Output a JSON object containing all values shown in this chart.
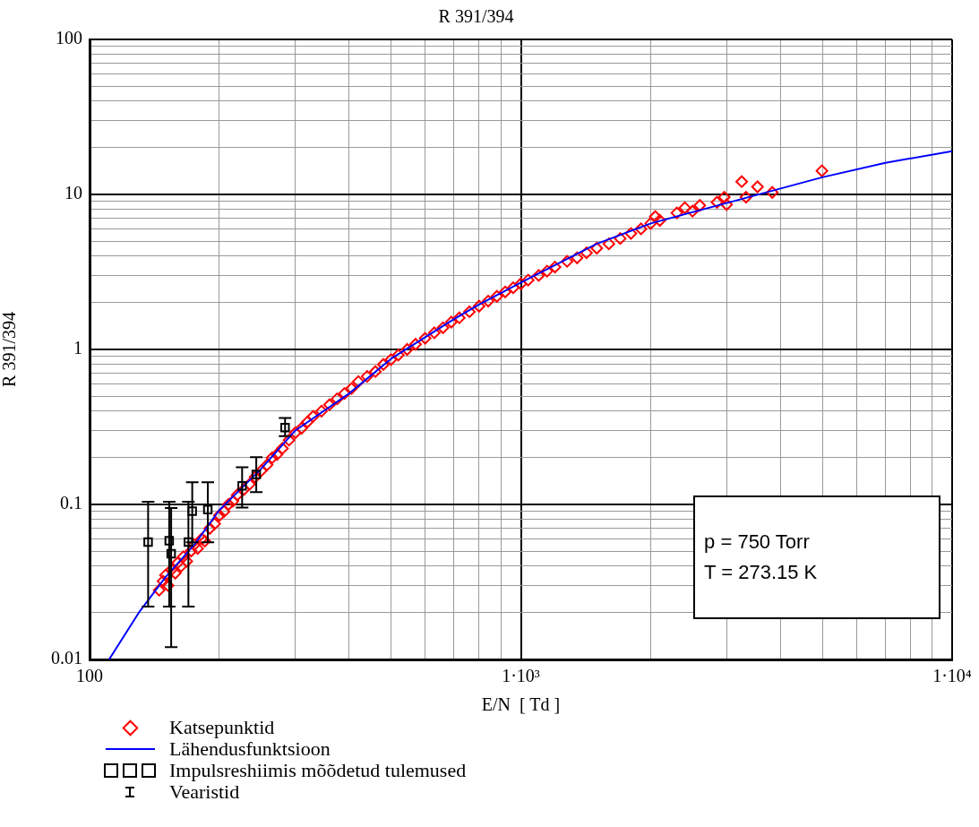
{
  "chart_data": {
    "type": "scatter",
    "title": "R 391/394",
    "xlabel": "E/N  [ Td ]",
    "ylabel": "R 391/394",
    "log": "xy",
    "grid": true,
    "legend": "bottom left",
    "xlim": [
      100,
      10000
    ],
    "xticks": [
      100,
      {
        "value": 1000,
        "label": "1·10³"
      },
      {
        "value": 10000,
        "label": "1·10⁴"
      }
    ],
    "ylim": [
      0.01,
      100
    ],
    "yticks": [
      0.01,
      0.1,
      1,
      10,
      100
    ],
    "annotations": [
      "p = 750 Torr",
      "T = 273.15 K",
      "Vearistid"
    ],
    "series": [
      {
        "name": "Katsepunktid",
        "type": "scatter",
        "marker": "diamond",
        "color": "#ff0000",
        "x": [
          145,
          148,
          150,
          152,
          155,
          158,
          160,
          163,
          165,
          168,
          172,
          175,
          178,
          182,
          185,
          190,
          195,
          200,
          205,
          210,
          215,
          220,
          228,
          235,
          242,
          250,
          258,
          265,
          272,
          280,
          290,
          300,
          310,
          320,
          330,
          345,
          360,
          375,
          390,
          405,
          420,
          440,
          460,
          480,
          500,
          520,
          545,
          570,
          600,
          630,
          660,
          690,
          720,
          760,
          800,
          840,
          880,
          920,
          960,
          1000,
          1040,
          1100,
          1150,
          1200,
          1280,
          1350,
          1420,
          1500,
          1600,
          1700,
          1800,
          1900,
          2000,
          2050,
          2100,
          2300,
          2400,
          2500,
          2600,
          2850,
          2963,
          3000,
          3252,
          3327,
          3538,
          3828,
          4990
        ],
        "values": [
          0.028,
          0.032,
          0.035,
          0.03,
          0.038,
          0.036,
          0.042,
          0.04,
          0.046,
          0.043,
          0.05,
          0.055,
          0.052,
          0.06,
          0.058,
          0.07,
          0.075,
          0.085,
          0.09,
          0.1,
          0.105,
          0.115,
          0.125,
          0.135,
          0.15,
          0.165,
          0.18,
          0.2,
          0.21,
          0.23,
          0.26,
          0.29,
          0.31,
          0.34,
          0.37,
          0.4,
          0.44,
          0.48,
          0.52,
          0.56,
          0.62,
          0.67,
          0.72,
          0.8,
          0.86,
          0.92,
          1.0,
          1.08,
          1.18,
          1.28,
          1.38,
          1.5,
          1.6,
          1.75,
          1.9,
          2.05,
          2.2,
          2.35,
          2.5,
          2.65,
          2.8,
          3.0,
          3.2,
          3.4,
          3.7,
          3.9,
          4.2,
          4.5,
          4.8,
          5.2,
          5.6,
          6.0,
          6.5,
          7.2,
          6.8,
          7.6,
          8.2,
          7.8,
          8.5,
          8.9,
          9.6,
          8.6,
          12.1,
          9.6,
          11.2,
          10.3,
          14.2
        ]
      },
      {
        "name": "Lähendusfunktsioon",
        "type": "line",
        "marker": "none",
        "color": "#0000ff",
        "x": [
          111,
          130,
          150,
          175,
          200,
          250,
          300,
          400,
          500,
          600,
          700,
          800,
          1000,
          1500,
          2000,
          3000,
          5000,
          7000,
          10000
        ],
        "values": [
          0.01,
          0.02,
          0.034,
          0.055,
          0.092,
          0.17,
          0.3,
          0.52,
          0.87,
          1.2,
          1.57,
          1.95,
          2.7,
          4.8,
          6.5,
          8.8,
          12.9,
          16,
          19
        ]
      },
      {
        "name": "Impulsreshiimis mõõdetud tulemused",
        "type": "scatter",
        "marker": "square",
        "color": "#000000",
        "x": [
          136.7,
          153,
          154.6,
          169.5,
          173,
          188,
          225.8,
          243.5,
          284
        ],
        "values": [
          0.0571,
          0.0584,
          0.0481,
          0.0571,
          0.0906,
          0.0926,
          0.132,
          0.156,
          0.313
        ],
        "errors": [
          [
            0.0219,
            0.104
          ],
          [
            0.0219,
            0.104
          ],
          [
            0.012,
            0.0947
          ],
          [
            0.0219,
            0.104
          ],
          [
            0.057,
            0.139
          ],
          [
            0.057,
            0.139
          ],
          [
            0.0956,
            0.174
          ],
          [
            0.12,
            0.202
          ],
          [
            0.276,
            0.361
          ]
        ]
      }
    ]
  }
}
